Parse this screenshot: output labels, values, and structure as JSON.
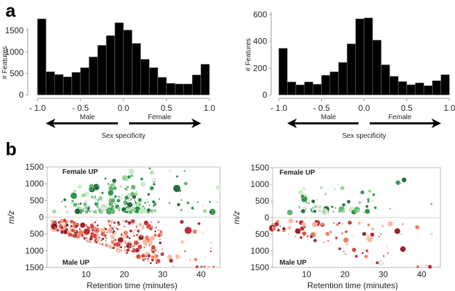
{
  "panels": {
    "a": "a",
    "b": "b"
  },
  "chart_data": [
    {
      "type": "bar",
      "id": "hist-left",
      "categories": [
        "-0.95",
        "-0.85",
        "-0.75",
        "-0.65",
        "-0.55",
        "-0.45",
        "-0.35",
        "-0.25",
        "-0.15",
        "-0.05",
        "0.05",
        "0.15",
        "0.25",
        "0.35",
        "0.45",
        "0.55",
        "0.65",
        "0.75",
        "0.85",
        "0.95"
      ],
      "values": [
        1770,
        540,
        475,
        420,
        525,
        635,
        885,
        1155,
        1380,
        1680,
        1510,
        1200,
        830,
        635,
        410,
        270,
        255,
        255,
        465,
        715
      ],
      "ylabel": "# Features",
      "xlabel": "Sex specificity",
      "ylim": [
        0,
        1800
      ],
      "yticks": [
        "0",
        "500",
        "1000",
        "1500"
      ],
      "yticks_values": [
        0,
        500,
        1000,
        1500
      ],
      "xticks": [
        "- 1.0",
        "- 0.5",
        "0.0",
        "0.5",
        "1.0"
      ],
      "xticks_values": [
        -1,
        -0.5,
        0,
        0.5,
        1
      ],
      "xlim": [
        -1,
        1
      ],
      "arrow_left": "Male",
      "arrow_right": "Female"
    },
    {
      "type": "bar",
      "id": "hist-right",
      "categories": [
        "-0.95",
        "-0.85",
        "-0.75",
        "-0.65",
        "-0.55",
        "-0.45",
        "-0.35",
        "-0.25",
        "-0.15",
        "-0.05",
        "0.05",
        "0.15",
        "0.25",
        "0.35",
        "0.45",
        "0.55",
        "0.65",
        "0.75",
        "0.85",
        "0.95"
      ],
      "values": [
        348,
        97,
        75,
        97,
        80,
        147,
        173,
        243,
        381,
        568,
        575,
        409,
        225,
        139,
        100,
        76,
        90,
        69,
        106,
        151
      ],
      "ylabel": "# Features",
      "xlabel": "Sex specificity",
      "ylim": [
        0,
        620
      ],
      "yticks": [
        "0",
        "200",
        "400",
        "600"
      ],
      "yticks_values": [
        0,
        200,
        400,
        600
      ],
      "xticks": [
        "- 1.0",
        "- 0.5",
        "0.0",
        "0.5",
        "1.0"
      ],
      "xticks_values": [
        -1,
        -0.5,
        0,
        0.5,
        1
      ],
      "xlim": [
        -1,
        1
      ],
      "arrow_left": "Male",
      "arrow_right": "Female"
    },
    {
      "type": "scatter",
      "id": "scatter-left",
      "xlabel": "Retention time (minutes)",
      "ylabel": "m/z",
      "xlim": [
        0,
        45
      ],
      "ylim": [
        -1500,
        1500
      ],
      "xticks": [
        "10",
        "20",
        "30",
        "40"
      ],
      "xticks_values": [
        10,
        20,
        30,
        40
      ],
      "yticks": [
        "1500",
        "1000",
        "500",
        "0",
        "500",
        "1000",
        "1500"
      ],
      "yticks_values": [
        1500,
        1000,
        500,
        0,
        -500,
        -1000,
        -1500
      ],
      "annotation_top": "Female UP",
      "annotation_bottom": "Male UP",
      "seed": 7,
      "density": 1.0
    },
    {
      "type": "scatter",
      "id": "scatter-right",
      "xlabel": "Retention time (minutes)",
      "ylabel": "m/z",
      "xlim": [
        0,
        45
      ],
      "ylim": [
        -1500,
        1500
      ],
      "xticks": [
        "10",
        "20",
        "30",
        "40"
      ],
      "xticks_values": [
        10,
        20,
        30,
        40
      ],
      "yticks": [
        "1500",
        "1000",
        "500",
        "0",
        "500",
        "1000",
        "1500"
      ],
      "yticks_values": [
        1500,
        1000,
        500,
        0,
        -500,
        -1000,
        -1500
      ],
      "annotation_top": "Female UP",
      "annotation_bottom": "Male UP",
      "seed": 19,
      "density": 0.3
    }
  ],
  "colors": {
    "bar": "#000000",
    "female": [
      "#0b5e2a",
      "#1f8a3c",
      "#4caf5f",
      "#8fd18f",
      "#c7e9c0"
    ],
    "male": [
      "#8b0d12",
      "#b5171e",
      "#d73a2a",
      "#f0704f",
      "#fcb49a"
    ]
  }
}
